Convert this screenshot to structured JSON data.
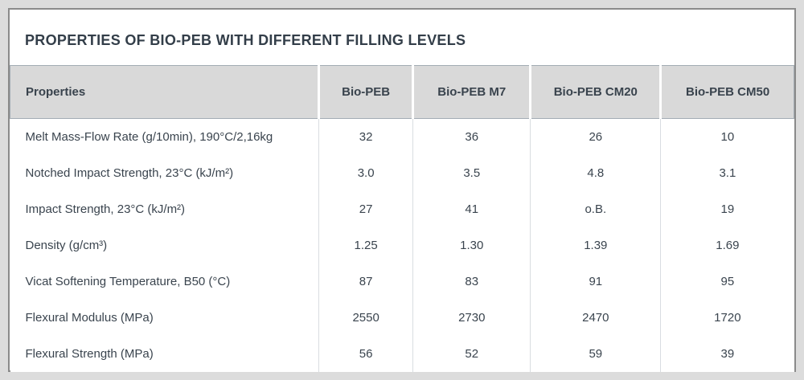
{
  "chart_data": {
    "type": "table",
    "title": "PROPERTIES OF BIO-PEB WITH DIFFERENT FILLING LEVELS",
    "columns": [
      "Properties",
      "Bio-PEB",
      "Bio-PEB M7",
      "Bio-PEB CM20",
      "Bio-PEB CM50"
    ],
    "rows": [
      [
        "Melt Mass-Flow Rate (g/10min), 190°C/2,16kg",
        "32",
        "36",
        "26",
        "10"
      ],
      [
        "Notched Impact Strength, 23°C (kJ/m²)",
        "3.0",
        "3.5",
        "4.8",
        "3.1"
      ],
      [
        "Impact Strength, 23°C (kJ/m²)",
        "27",
        "41",
        "o.B.",
        "19"
      ],
      [
        "Density (g/cm³)",
        "1.25",
        "1.30",
        "1.39",
        "1.69"
      ],
      [
        "Vicat Softening Temperature, B50 (°C)",
        "87",
        "83",
        "91",
        "95"
      ],
      [
        "Flexural Modulus (MPa)",
        "2550",
        "2730",
        "2470",
        "1720"
      ],
      [
        "Flexural Strength (MPa)",
        "56",
        "52",
        "59",
        "39"
      ]
    ],
    "layout": {
      "header_align": "center",
      "first_column_align": "left",
      "values_align": "center",
      "grid": "vertical-dividers-only"
    }
  },
  "colors": {
    "page_background": "#dcdcdc",
    "panel_background": "#ffffff",
    "panel_border": "#8a8a8a",
    "title_text": "#333e49",
    "header_background": "#d9d9d9",
    "header_border": "#a3acb4",
    "header_divider": "#ffffff",
    "body_text": "#3a444e",
    "column_divider": "#d9dde1"
  }
}
